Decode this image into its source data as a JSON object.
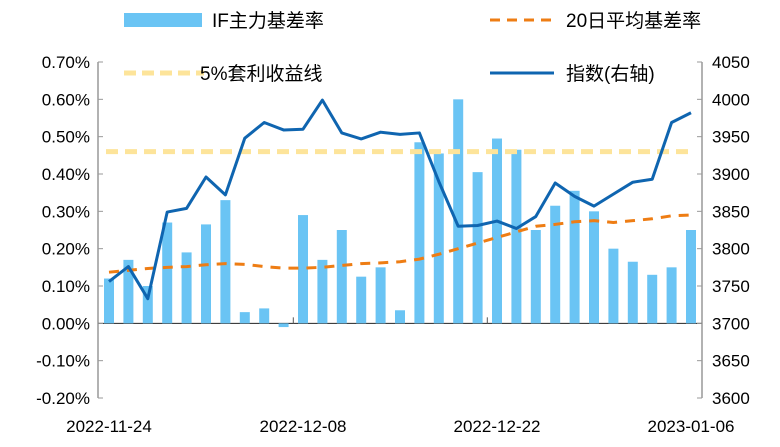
{
  "chart_data": {
    "type": "bar+line",
    "categories": [
      "2022-11-24",
      "",
      "",
      "",
      "",
      "",
      "",
      "",
      "",
      "",
      "2022-12-08",
      "",
      "",
      "",
      "",
      "",
      "",
      "",
      "",
      "",
      "2022-12-22",
      "",
      "",
      "",
      "",
      "",
      "",
      "",
      "",
      "",
      "2023-01-06"
    ],
    "x_tick_labels": [
      "2022-11-24",
      "2022-12-08",
      "2022-12-22",
      "2023-01-06"
    ],
    "x_tick_index": [
      0,
      10,
      20,
      30
    ],
    "left_axis": {
      "ylim": [
        -0.2,
        0.7
      ],
      "ticks": [
        "-0.20%",
        "-0.10%",
        "0.00%",
        "0.10%",
        "0.20%",
        "0.30%",
        "0.40%",
        "0.50%",
        "0.60%",
        "0.70%"
      ]
    },
    "right_axis": {
      "ylim": [
        3600,
        4050
      ],
      "ticks": [
        "3600",
        "3650",
        "3700",
        "3750",
        "3800",
        "3850",
        "3900",
        "3950",
        "4000",
        "4050"
      ]
    },
    "series": [
      {
        "name": "IF主力基差率",
        "type": "bar",
        "axis": "left",
        "color": "#6ac4f4",
        "values": [
          0.12,
          0.17,
          0.1,
          0.27,
          0.19,
          0.265,
          0.33,
          0.03,
          0.04,
          -0.01,
          0.29,
          0.17,
          0.25,
          0.125,
          0.15,
          0.035,
          0.485,
          0.455,
          0.6,
          0.405,
          0.495,
          0.465,
          0.25,
          0.315,
          0.355,
          0.3,
          0.2,
          0.165,
          0.13,
          0.15,
          0.25
        ]
      },
      {
        "name": "20日平均基差率",
        "type": "dashed-line",
        "axis": "left",
        "color": "#ee7d14",
        "values": [
          0.137,
          0.142,
          0.147,
          0.15,
          0.152,
          0.157,
          0.16,
          0.158,
          0.152,
          0.148,
          0.148,
          0.15,
          0.155,
          0.16,
          0.162,
          0.165,
          0.172,
          0.185,
          0.2,
          0.215,
          0.23,
          0.245,
          0.26,
          0.265,
          0.272,
          0.275,
          0.27,
          0.275,
          0.28,
          0.288,
          0.29
        ]
      },
      {
        "name": "5%套利收益线",
        "type": "dashed-line",
        "axis": "left",
        "color": "#fde49a",
        "values": [
          0.46,
          0.46,
          0.46,
          0.46,
          0.46,
          0.46,
          0.46,
          0.46,
          0.46,
          0.46,
          0.46,
          0.46,
          0.46,
          0.46,
          0.46,
          0.46,
          0.46,
          0.46,
          0.46,
          0.46,
          0.46,
          0.46,
          0.46,
          0.46,
          0.46,
          0.46,
          0.46,
          0.46,
          0.46,
          0.46,
          0.46
        ]
      },
      {
        "name": "指数(右轴)",
        "type": "line",
        "axis": "right",
        "color": "#0f65b0",
        "values": [
          3756,
          3776,
          3733,
          3849,
          3854,
          3896,
          3872,
          3948,
          3969,
          3959,
          3960,
          3999,
          3955,
          3947,
          3956,
          3953,
          3955,
          3890,
          3830,
          3831,
          3837,
          3827,
          3843,
          3888,
          3870,
          3857,
          3873,
          3889,
          3893,
          3969,
          3982
        ]
      }
    ],
    "legend_placement": "top",
    "grid": false
  }
}
